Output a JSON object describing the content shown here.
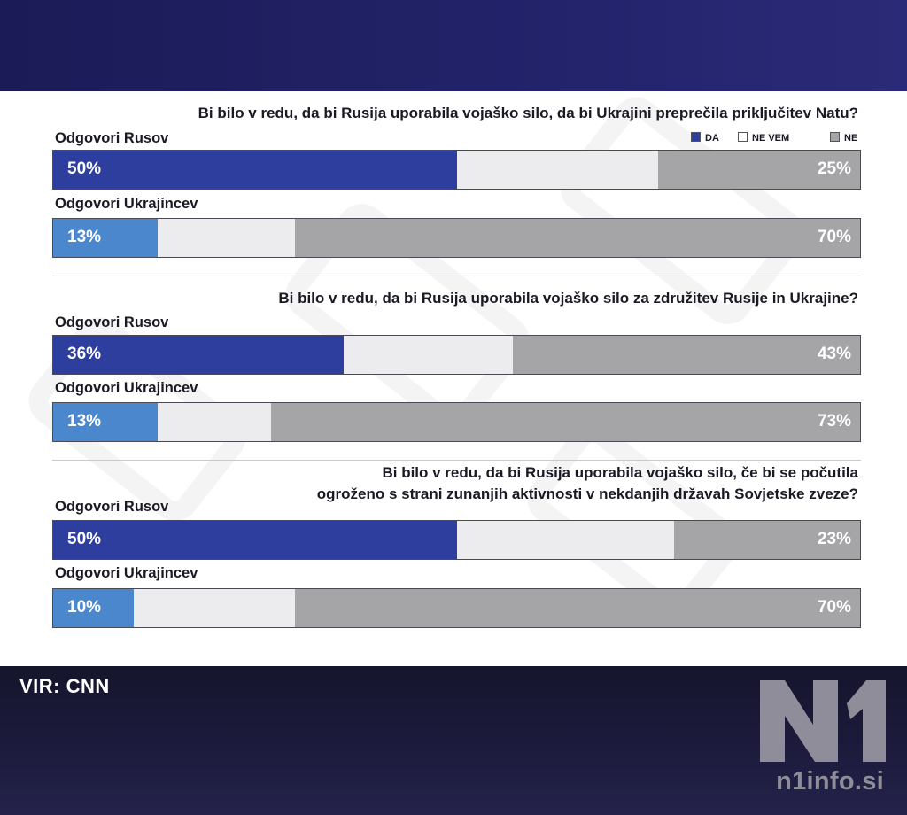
{
  "source": "VIR: CNN",
  "branding": {
    "logo_text": "N1",
    "url": "n1info.si"
  },
  "legend": [
    {
      "label": "DA",
      "color": "#2e3e9e"
    },
    {
      "label": "NE VEM",
      "color": "#ececef"
    },
    {
      "label": "NE",
      "color": "#a5a5a7"
    }
  ],
  "chart_data": {
    "type": "bar",
    "orientation": "horizontal-stacked",
    "series_names": [
      "DA",
      "NE VEM",
      "NE"
    ],
    "questions": [
      {
        "text": "Bi bilo v redu, da bi Rusija uporabila vojaško silo, da bi Ukrajini preprečila priključitev Natu?",
        "groups": [
          {
            "label": "Odgovori Rusov",
            "values": [
              50,
              25,
              25
            ],
            "da_label": "50%",
            "ne_label": "25%"
          },
          {
            "label": "Odgovori Ukrajincev",
            "values": [
              13,
              17,
              70
            ],
            "da_label": "13%",
            "ne_label": "70%"
          }
        ]
      },
      {
        "text": "Bi bilo v redu, da bi Rusija uporabila vojaško silo za združitev Rusije in Ukrajine?",
        "groups": [
          {
            "label": "Odgovori Rusov",
            "values": [
              36,
              21,
              43
            ],
            "da_label": "36%",
            "ne_label": "43%"
          },
          {
            "label": "Odgovori Ukrajincev",
            "values": [
              13,
              14,
              73
            ],
            "da_label": "13%",
            "ne_label": "73%"
          }
        ]
      },
      {
        "text_lines": [
          "Bi bilo v redu, da bi Rusija uporabila vojaško silo, če bi se počutila",
          "ogroženo s strani zunanjih aktivnosti v nekdanjih državah Sovjetske zveze?"
        ],
        "groups": [
          {
            "label": "Odgovori Rusov",
            "values": [
              50,
              27,
              23
            ],
            "da_label": "50%",
            "ne_label": "23%"
          },
          {
            "label": "Odgovori Ukrajincev",
            "values": [
              10,
              20,
              70
            ],
            "da_label": "10%",
            "ne_label": "70%"
          }
        ]
      }
    ]
  }
}
